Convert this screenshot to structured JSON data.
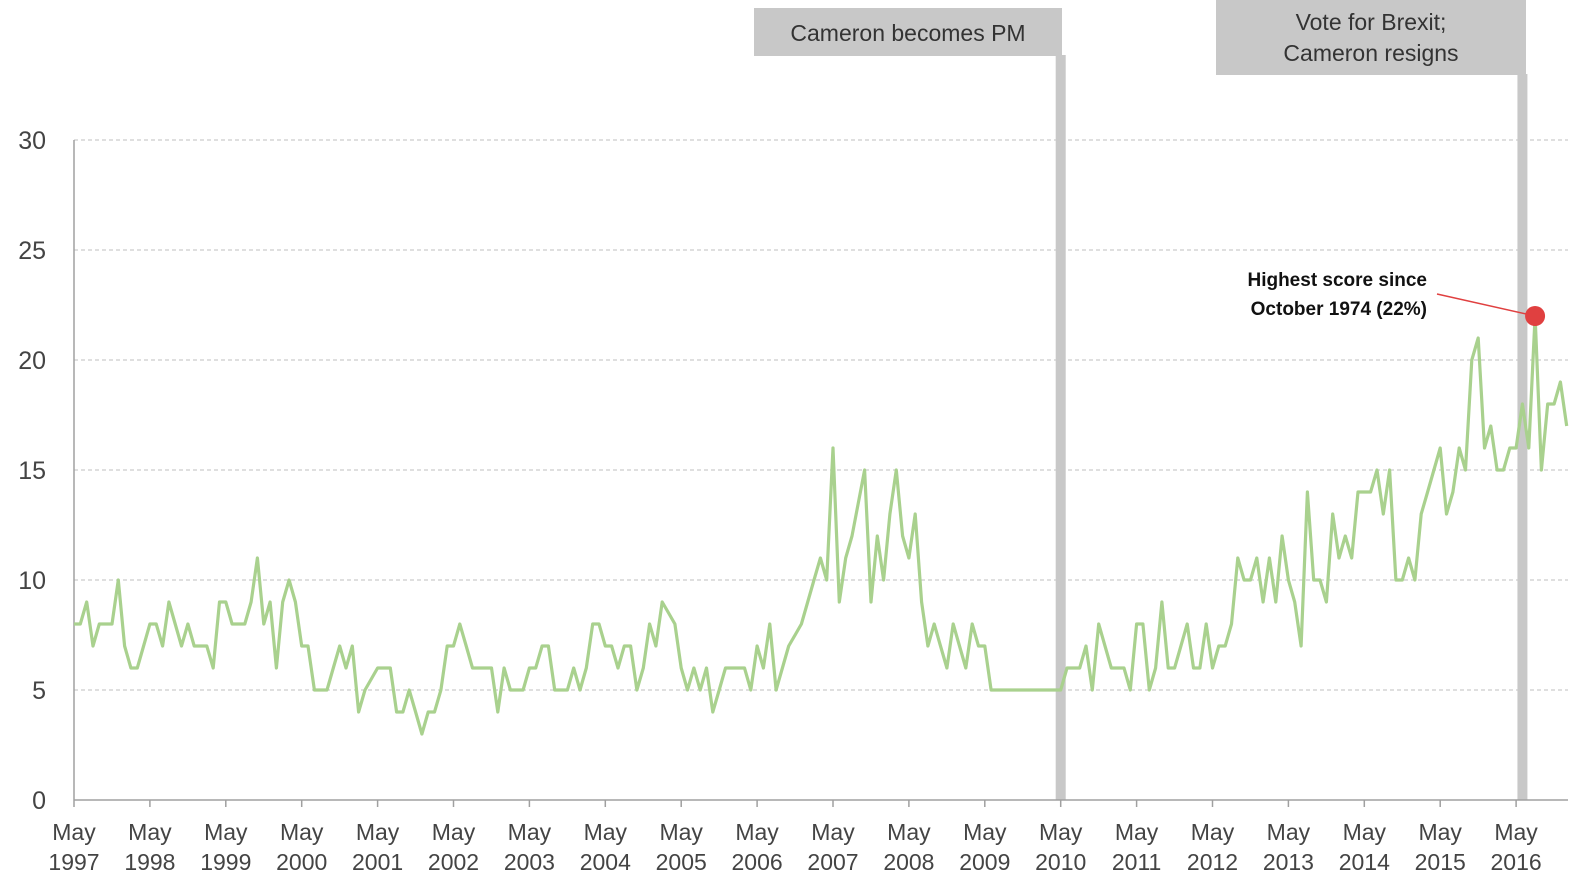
{
  "chart_data": {
    "type": "line",
    "y_ticks": [
      "0",
      "5",
      "10",
      "15",
      "20",
      "25",
      "30"
    ],
    "ylim": [
      0,
      30
    ],
    "grid": true,
    "x_tick_labels": [
      {
        "month": "May",
        "year": "1997"
      },
      {
        "month": "May",
        "year": "1998"
      },
      {
        "month": "May",
        "year": "1999"
      },
      {
        "month": "May",
        "year": "2000"
      },
      {
        "month": "May",
        "year": "2001"
      },
      {
        "month": "May",
        "year": "2002"
      },
      {
        "month": "May",
        "year": "2003"
      },
      {
        "month": "May",
        "year": "2004"
      },
      {
        "month": "May",
        "year": "2005"
      },
      {
        "month": "May",
        "year": "2006"
      },
      {
        "month": "May",
        "year": "2007"
      },
      {
        "month": "May",
        "year": "2008"
      },
      {
        "month": "May",
        "year": "2009"
      },
      {
        "month": "May",
        "year": "2010"
      },
      {
        "month": "May",
        "year": "2011"
      },
      {
        "month": "May",
        "year": "2012"
      },
      {
        "month": "May",
        "year": "2013"
      },
      {
        "month": "May",
        "year": "2014"
      },
      {
        "month": "May",
        "year": "2015"
      },
      {
        "month": "May",
        "year": "2016"
      }
    ],
    "series": [
      {
        "color": "#a9d18e",
        "points": [
          [
            "1997-05",
            8
          ],
          [
            "1997-06",
            8
          ],
          [
            "1997-07",
            9
          ],
          [
            "1997-08",
            7
          ],
          [
            "1997-09",
            8
          ],
          [
            "1997-10",
            8
          ],
          [
            "1997-11",
            8
          ],
          [
            "1997-12",
            10
          ],
          [
            "1998-01",
            7
          ],
          [
            "1998-02",
            6
          ],
          [
            "1998-03",
            6
          ],
          [
            "1998-04",
            7
          ],
          [
            "1998-05",
            8
          ],
          [
            "1998-06",
            8
          ],
          [
            "1998-07",
            7
          ],
          [
            "1998-08",
            9
          ],
          [
            "1998-09",
            8
          ],
          [
            "1998-10",
            7
          ],
          [
            "1998-11",
            8
          ],
          [
            "1998-12",
            7
          ],
          [
            "1999-01",
            7
          ],
          [
            "1999-02",
            7
          ],
          [
            "1999-03",
            6
          ],
          [
            "1999-04",
            9
          ],
          [
            "1999-05",
            9
          ],
          [
            "1999-06",
            8
          ],
          [
            "1999-07",
            8
          ],
          [
            "1999-08",
            8
          ],
          [
            "1999-09",
            9
          ],
          [
            "1999-10",
            11
          ],
          [
            "1999-11",
            8
          ],
          [
            "1999-12",
            9
          ],
          [
            "2000-01",
            6
          ],
          [
            "2000-02",
            9
          ],
          [
            "2000-03",
            10
          ],
          [
            "2000-04",
            9
          ],
          [
            "2000-05",
            7
          ],
          [
            "2000-06",
            7
          ],
          [
            "2000-07",
            5
          ],
          [
            "2000-08",
            5
          ],
          [
            "2000-09",
            5
          ],
          [
            "2000-10",
            6
          ],
          [
            "2000-11",
            7
          ],
          [
            "2000-12",
            6
          ],
          [
            "2001-01",
            7
          ],
          [
            "2001-02",
            4
          ],
          [
            "2001-03",
            5
          ],
          [
            "2001-04",
            5.5
          ],
          [
            "2001-05",
            6
          ],
          [
            "2001-06",
            6
          ],
          [
            "2001-07",
            6
          ],
          [
            "2001-08",
            4
          ],
          [
            "2001-09",
            4
          ],
          [
            "2001-10",
            5
          ],
          [
            "2001-11",
            4
          ],
          [
            "2001-12",
            3
          ],
          [
            "2002-01",
            4
          ],
          [
            "2002-02",
            4
          ],
          [
            "2002-03",
            5
          ],
          [
            "2002-04",
            7
          ],
          [
            "2002-05",
            7
          ],
          [
            "2002-06",
            8
          ],
          [
            "2002-07",
            7
          ],
          [
            "2002-08",
            6
          ],
          [
            "2002-09",
            6
          ],
          [
            "2002-10",
            6
          ],
          [
            "2002-11",
            6
          ],
          [
            "2002-12",
            4
          ],
          [
            "2003-01",
            6
          ],
          [
            "2003-02",
            5
          ],
          [
            "2003-03",
            5
          ],
          [
            "2003-04",
            5
          ],
          [
            "2003-05",
            6
          ],
          [
            "2003-06",
            6
          ],
          [
            "2003-07",
            7
          ],
          [
            "2003-08",
            7
          ],
          [
            "2003-09",
            5
          ],
          [
            "2003-10",
            5
          ],
          [
            "2003-11",
            5
          ],
          [
            "2003-12",
            6
          ],
          [
            "2004-01",
            5
          ],
          [
            "2004-02",
            6
          ],
          [
            "2004-03",
            8
          ],
          [
            "2004-04",
            8
          ],
          [
            "2004-05",
            7
          ],
          [
            "2004-06",
            7
          ],
          [
            "2004-07",
            6
          ],
          [
            "2004-08",
            7
          ],
          [
            "2004-09",
            7
          ],
          [
            "2004-10",
            5
          ],
          [
            "2004-11",
            6
          ],
          [
            "2004-12",
            8
          ],
          [
            "2005-01",
            7
          ],
          [
            "2005-02",
            9
          ],
          [
            "2005-03",
            8.5
          ],
          [
            "2005-04",
            8
          ],
          [
            "2005-05",
            6
          ],
          [
            "2005-06",
            5
          ],
          [
            "2005-07",
            6
          ],
          [
            "2005-08",
            5
          ],
          [
            "2005-09",
            6
          ],
          [
            "2005-10",
            4
          ],
          [
            "2005-11",
            5
          ],
          [
            "2005-12",
            6
          ],
          [
            "2006-01",
            6
          ],
          [
            "2006-02",
            6
          ],
          [
            "2006-03",
            6
          ],
          [
            "2006-04",
            5
          ],
          [
            "2006-05",
            7
          ],
          [
            "2006-06",
            6
          ],
          [
            "2006-07",
            8
          ],
          [
            "2006-08",
            5
          ],
          [
            "2006-09",
            6
          ],
          [
            "2006-10",
            7
          ],
          [
            "2006-11",
            7.5
          ],
          [
            "2006-12",
            8
          ],
          [
            "2007-01",
            9
          ],
          [
            "2007-02",
            10
          ],
          [
            "2007-03",
            11
          ],
          [
            "2007-04",
            10
          ],
          [
            "2007-05",
            16
          ],
          [
            "2007-06",
            9
          ],
          [
            "2007-07",
            11
          ],
          [
            "2007-08",
            12
          ],
          [
            "2007-09",
            13.5
          ],
          [
            "2007-10",
            15
          ],
          [
            "2007-11",
            9
          ],
          [
            "2007-12",
            12
          ],
          [
            "2008-01",
            10
          ],
          [
            "2008-02",
            13
          ],
          [
            "2008-03",
            15
          ],
          [
            "2008-04",
            12
          ],
          [
            "2008-05",
            11
          ],
          [
            "2008-06",
            13
          ],
          [
            "2008-07",
            9
          ],
          [
            "2008-08",
            7
          ],
          [
            "2008-09",
            8
          ],
          [
            "2008-10",
            7
          ],
          [
            "2008-11",
            6
          ],
          [
            "2008-12",
            8
          ],
          [
            "2009-01",
            7
          ],
          [
            "2009-02",
            6
          ],
          [
            "2009-03",
            8
          ],
          [
            "2009-04",
            7
          ],
          [
            "2009-05",
            7
          ],
          [
            "2009-06",
            5
          ],
          [
            "2009-07",
            5
          ],
          [
            "2009-08",
            5
          ],
          [
            "2009-09",
            5
          ],
          [
            "2009-10",
            5
          ],
          [
            "2009-11",
            5
          ],
          [
            "2009-12",
            5
          ],
          [
            "2010-01",
            5
          ],
          [
            "2010-02",
            5
          ],
          [
            "2010-03",
            5
          ],
          [
            "2010-04",
            5
          ],
          [
            "2010-05",
            5
          ],
          [
            "2010-06",
            6
          ],
          [
            "2010-07",
            6
          ],
          [
            "2010-08",
            6
          ],
          [
            "2010-09",
            7
          ],
          [
            "2010-10",
            5
          ],
          [
            "2010-11",
            8
          ],
          [
            "2010-12",
            7
          ],
          [
            "2011-01",
            6
          ],
          [
            "2011-02",
            6
          ],
          [
            "2011-03",
            6
          ],
          [
            "2011-04",
            5
          ],
          [
            "2011-05",
            8
          ],
          [
            "2011-06",
            8
          ],
          [
            "2011-07",
            5
          ],
          [
            "2011-08",
            6
          ],
          [
            "2011-09",
            9
          ],
          [
            "2011-10",
            6
          ],
          [
            "2011-11",
            6
          ],
          [
            "2011-12",
            7
          ],
          [
            "2012-01",
            8
          ],
          [
            "2012-02",
            6
          ],
          [
            "2012-03",
            6
          ],
          [
            "2012-04",
            8
          ],
          [
            "2012-05",
            6
          ],
          [
            "2012-06",
            7
          ],
          [
            "2012-07",
            7
          ],
          [
            "2012-08",
            8
          ],
          [
            "2012-09",
            11
          ],
          [
            "2012-10",
            10
          ],
          [
            "2012-11",
            10
          ],
          [
            "2012-12",
            11
          ],
          [
            "2013-01",
            9
          ],
          [
            "2013-02",
            11
          ],
          [
            "2013-03",
            9
          ],
          [
            "2013-04",
            12
          ],
          [
            "2013-05",
            10
          ],
          [
            "2013-06",
            9
          ],
          [
            "2013-07",
            7
          ],
          [
            "2013-08",
            14
          ],
          [
            "2013-09",
            10
          ],
          [
            "2013-10",
            10
          ],
          [
            "2013-11",
            9
          ],
          [
            "2013-12",
            13
          ],
          [
            "2014-01",
            11
          ],
          [
            "2014-02",
            12
          ],
          [
            "2014-03",
            11
          ],
          [
            "2014-04",
            14
          ],
          [
            "2014-05",
            14
          ],
          [
            "2014-06",
            14
          ],
          [
            "2014-07",
            15
          ],
          [
            "2014-08",
            13
          ],
          [
            "2014-09",
            15
          ],
          [
            "2014-10",
            10
          ],
          [
            "2014-11",
            10
          ],
          [
            "2014-12",
            11
          ],
          [
            "2015-01",
            10
          ],
          [
            "2015-02",
            13
          ],
          [
            "2015-03",
            14
          ],
          [
            "2015-04",
            15
          ],
          [
            "2015-05",
            16
          ],
          [
            "2015-06",
            13
          ],
          [
            "2015-07",
            14
          ],
          [
            "2015-08",
            16
          ],
          [
            "2015-09",
            15
          ],
          [
            "2015-10",
            20
          ],
          [
            "2015-11",
            21
          ],
          [
            "2015-12",
            16
          ],
          [
            "2016-01",
            17
          ],
          [
            "2016-02",
            15
          ],
          [
            "2016-03",
            15
          ],
          [
            "2016-04",
            16
          ],
          [
            "2016-05",
            16
          ],
          [
            "2016-06",
            18
          ],
          [
            "2016-07",
            16
          ],
          [
            "2016-08",
            22
          ],
          [
            "2016-09",
            15
          ],
          [
            "2016-10",
            18
          ],
          [
            "2016-11",
            18
          ],
          [
            "2016-12",
            19
          ],
          [
            "2017-01",
            17
          ]
        ]
      }
    ],
    "events": [
      {
        "label": "Cameron becomes PM",
        "date": "2010-05"
      },
      {
        "label": "Vote for Brexit;",
        "label2": "Cameron resigns",
        "date": "2016-06"
      }
    ],
    "highlight": {
      "line1": "Highest score since",
      "line2": "October 1974 (22%)",
      "date": "2016-08",
      "value": 22,
      "color": "#e04040"
    },
    "colors": {
      "line": "#a9d18e",
      "event_bar": "#c8c8c8",
      "grid": "#bfbfbf",
      "axis": "#a0a0a0",
      "highlight": "#e04040"
    }
  }
}
